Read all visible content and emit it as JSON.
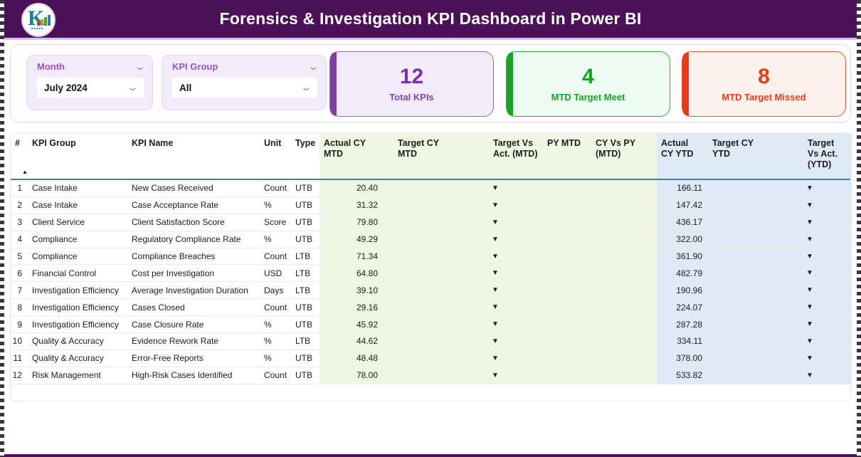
{
  "header": {
    "title": "Forensics & Investigation KPI Dashboard in Power BI",
    "logo_letter": "K",
    "background_color": "#4B1058"
  },
  "filters": {
    "month": {
      "label": "Month",
      "value": "July 2024",
      "chevron_icon": "⌄"
    },
    "kpi_group": {
      "label": "KPI Group",
      "value": "All",
      "chevron_icon": "⌄"
    }
  },
  "cards": [
    {
      "value": "12",
      "label": "Total KPIs",
      "accent": "#7E3F9F"
    },
    {
      "value": "4",
      "label": "MTD Target Meet",
      "accent": "#1CA32C"
    },
    {
      "value": "8",
      "label": "MTD Target Missed",
      "accent": "#E83B15"
    }
  ],
  "table": {
    "indicator_glyph": "▼",
    "indicator_colors": {
      "down-red": "#DE1410",
      "down-green": "#129E1C"
    },
    "sort_icon": "▲",
    "columns": [
      "#",
      "KPI Group",
      "KPI Name",
      "Unit",
      "Type",
      "Actual CY MTD",
      "Target CY MTD",
      "Target Vs Act. (MTD)",
      "PY MTD",
      "CY Vs PY (MTD)",
      "Actual CY YTD",
      "Target CY YTD",
      "Target Vs Act. (YTD)"
    ],
    "rows": [
      {
        "num": "1",
        "group": "Case Intake",
        "name": "New Cases Received",
        "unit": "Count",
        "type": "UTB",
        "actual_mtd": "20.40",
        "target_mtd": "",
        "mtd_indicator": "down-red",
        "py_mtd": "",
        "cy_vs_py": "",
        "actual_ytd": "166.11",
        "target_ytd": "",
        "ytd_indicator": "down-red"
      },
      {
        "num": "2",
        "group": "Case Intake",
        "name": "Case Acceptance Rate",
        "unit": "%",
        "type": "UTB",
        "actual_mtd": "31.32",
        "target_mtd": "",
        "mtd_indicator": "down-red",
        "py_mtd": "",
        "cy_vs_py": "",
        "actual_ytd": "147.42",
        "target_ytd": "",
        "ytd_indicator": "down-red"
      },
      {
        "num": "3",
        "group": "Client Service",
        "name": "Client Satisfaction Score",
        "unit": "Score",
        "type": "UTB",
        "actual_mtd": "79.80",
        "target_mtd": "",
        "mtd_indicator": "down-red",
        "py_mtd": "",
        "cy_vs_py": "",
        "actual_ytd": "436.17",
        "target_ytd": "",
        "ytd_indicator": "down-red"
      },
      {
        "num": "4",
        "group": "Compliance",
        "name": "Regulatory Compliance Rate",
        "unit": "%",
        "type": "UTB",
        "actual_mtd": "49.29",
        "target_mtd": "",
        "mtd_indicator": "down-red",
        "py_mtd": "",
        "cy_vs_py": "",
        "actual_ytd": "322.00",
        "target_ytd": "",
        "ytd_indicator": "down-red"
      },
      {
        "num": "5",
        "group": "Compliance",
        "name": "Compliance Breaches",
        "unit": "Count",
        "type": "LTB",
        "actual_mtd": "71.34",
        "target_mtd": "",
        "mtd_indicator": "down-green",
        "py_mtd": "",
        "cy_vs_py": "",
        "actual_ytd": "361.90",
        "target_ytd": "",
        "ytd_indicator": "down-green"
      },
      {
        "num": "6",
        "group": "Financial Control",
        "name": "Cost per Investigation",
        "unit": "USD",
        "type": "LTB",
        "actual_mtd": "64.80",
        "target_mtd": "",
        "mtd_indicator": "down-green",
        "py_mtd": "",
        "cy_vs_py": "",
        "actual_ytd": "482.79",
        "target_ytd": "",
        "ytd_indicator": "down-green"
      },
      {
        "num": "7",
        "group": "Investigation Efficiency",
        "name": "Average Investigation Duration",
        "unit": "Days",
        "type": "LTB",
        "actual_mtd": "39.10",
        "target_mtd": "",
        "mtd_indicator": "down-green",
        "py_mtd": "",
        "cy_vs_py": "",
        "actual_ytd": "190.96",
        "target_ytd": "",
        "ytd_indicator": "down-green"
      },
      {
        "num": "8",
        "group": "Investigation Efficiency",
        "name": "Cases Closed",
        "unit": "Count",
        "type": "UTB",
        "actual_mtd": "29.16",
        "target_mtd": "",
        "mtd_indicator": "down-red",
        "py_mtd": "",
        "cy_vs_py": "",
        "actual_ytd": "224.07",
        "target_ytd": "",
        "ytd_indicator": "down-red"
      },
      {
        "num": "9",
        "group": "Investigation Efficiency",
        "name": "Case Closure Rate",
        "unit": "%",
        "type": "UTB",
        "actual_mtd": "45.92",
        "target_mtd": "",
        "mtd_indicator": "down-red",
        "py_mtd": "",
        "cy_vs_py": "",
        "actual_ytd": "287.28",
        "target_ytd": "",
        "ytd_indicator": "down-red"
      },
      {
        "num": "10",
        "group": "Quality & Accuracy",
        "name": "Evidence Rework Rate",
        "unit": "%",
        "type": "LTB",
        "actual_mtd": "44.62",
        "target_mtd": "",
        "mtd_indicator": "down-green",
        "py_mtd": "",
        "cy_vs_py": "",
        "actual_ytd": "334.11",
        "target_ytd": "",
        "ytd_indicator": "down-green"
      },
      {
        "num": "11",
        "group": "Quality & Accuracy",
        "name": "Error-Free Reports",
        "unit": "%",
        "type": "UTB",
        "actual_mtd": "48.48",
        "target_mtd": "",
        "mtd_indicator": "down-red",
        "py_mtd": "",
        "cy_vs_py": "",
        "actual_ytd": "378.00",
        "target_ytd": "",
        "ytd_indicator": "down-red"
      },
      {
        "num": "12",
        "group": "Risk Management",
        "name": "High-Risk Cases Identified",
        "unit": "Count",
        "type": "UTB",
        "actual_mtd": "78.00",
        "target_mtd": "",
        "mtd_indicator": "down-red",
        "py_mtd": "",
        "cy_vs_py": "",
        "actual_ytd": "533.82",
        "target_ytd": "",
        "ytd_indicator": "down-red"
      }
    ]
  }
}
